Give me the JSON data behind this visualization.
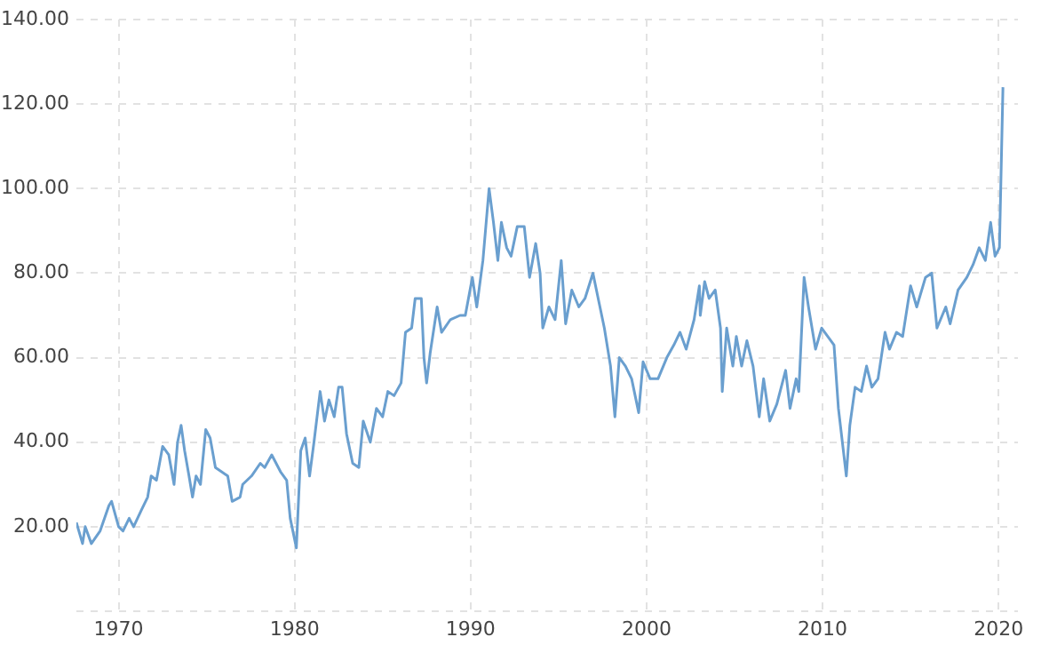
{
  "chart_data": {
    "type": "line",
    "grid": true,
    "marker": "none",
    "line_style": "solid",
    "legend": false,
    "xlim": [
      1967.6,
      2021.1
    ],
    "xticks": [
      1970,
      1980,
      1990,
      2000,
      2010,
      2020
    ],
    "ylim": [
      0,
      140
    ],
    "yticks": [
      {
        "value": 0,
        "label": null
      },
      {
        "value": 20,
        "label": "20.00"
      },
      {
        "value": 40,
        "label": "40.00"
      },
      {
        "value": 60,
        "label": "60.00"
      },
      {
        "value": 80,
        "label": "80.00"
      },
      {
        "value": 100,
        "label": "100.00"
      },
      {
        "value": 120,
        "label": "120.00"
      },
      {
        "value": 140,
        "label": "140.00"
      }
    ],
    "series": [
      {
        "color": "#6a9fcf",
        "x": [
          1967.6,
          1967.95,
          1968.1,
          1968.45,
          1968.95,
          1969.45,
          1969.6,
          1970.0,
          1970.25,
          1970.6,
          1970.85,
          1971.3,
          1971.65,
          1971.85,
          1972.15,
          1972.5,
          1972.85,
          1973.15,
          1973.35,
          1973.55,
          1973.75,
          1974.0,
          1974.2,
          1974.4,
          1974.65,
          1974.95,
          1975.2,
          1975.5,
          1975.85,
          1976.2,
          1976.45,
          1976.9,
          1977.05,
          1977.55,
          1978.05,
          1978.3,
          1978.7,
          1979.2,
          1979.55,
          1979.75,
          1980.1,
          1980.35,
          1980.6,
          1980.85,
          1981.1,
          1981.45,
          1981.7,
          1981.95,
          1982.25,
          1982.5,
          1982.7,
          1982.95,
          1983.3,
          1983.65,
          1983.9,
          1984.3,
          1984.65,
          1985.0,
          1985.3,
          1985.65,
          1986.05,
          1986.3,
          1986.65,
          1986.85,
          1987.2,
          1987.35,
          1987.5,
          1987.7,
          1988.1,
          1988.35,
          1988.85,
          1989.4,
          1989.7,
          1990.1,
          1990.35,
          1990.7,
          1991.05,
          1991.3,
          1991.55,
          1991.75,
          1992.05,
          1992.3,
          1992.65,
          1993.05,
          1993.35,
          1993.7,
          1993.95,
          1994.1,
          1994.45,
          1994.8,
          1995.15,
          1995.4,
          1995.75,
          1996.15,
          1996.5,
          1996.95,
          1997.3,
          1997.6,
          1997.95,
          1998.2,
          1998.45,
          1998.8,
          1999.15,
          1999.55,
          1999.8,
          2000.2,
          2000.65,
          2001.15,
          2001.55,
          2001.9,
          2002.25,
          2002.7,
          2003.0,
          2003.05,
          2003.3,
          2003.55,
          2003.9,
          2004.2,
          2004.3,
          2004.55,
          2004.9,
          2005.1,
          2005.4,
          2005.7,
          2006.05,
          2006.4,
          2006.65,
          2007.0,
          2007.4,
          2007.9,
          2008.15,
          2008.5,
          2008.65,
          2008.95,
          2009.2,
          2009.6,
          2009.95,
          2010.3,
          2010.65,
          2010.9,
          2011.35,
          2011.55,
          2011.85,
          2012.2,
          2012.5,
          2012.8,
          2013.15,
          2013.55,
          2013.8,
          2014.2,
          2014.55,
          2015.0,
          2015.35,
          2015.85,
          2016.2,
          2016.5,
          2017.0,
          2017.25,
          2017.7,
          2018.2,
          2018.55,
          2018.9,
          2019.25,
          2019.55,
          2019.8,
          2020.05,
          2020.25
        ],
        "values": [
          21,
          16,
          20,
          16,
          19,
          25,
          26,
          20,
          19,
          22,
          20,
          24,
          27,
          32,
          31,
          39,
          37,
          30,
          40,
          44,
          38,
          32,
          27,
          32,
          30,
          43,
          41,
          34,
          33,
          32,
          26,
          27,
          30,
          32,
          35,
          34,
          37,
          33,
          31,
          22,
          15,
          38,
          41,
          32,
          40,
          52,
          45,
          50,
          46,
          53,
          53,
          42,
          35,
          34,
          45,
          40,
          48,
          46,
          52,
          51,
          54,
          66,
          67,
          74,
          74,
          60,
          54,
          61,
          72,
          66,
          69,
          70,
          70,
          79,
          72,
          83,
          100,
          92,
          83,
          92,
          86,
          84,
          91,
          91,
          79,
          87,
          80,
          67,
          72,
          69,
          83,
          68,
          76,
          72,
          74,
          80,
          73,
          67,
          58,
          46,
          60,
          58,
          55,
          47,
          59,
          55,
          55,
          60,
          63,
          66,
          62,
          69,
          77,
          70,
          78,
          74,
          76,
          67,
          52,
          67,
          58,
          65,
          58,
          64,
          58,
          46,
          55,
          45,
          49,
          57,
          48,
          55,
          52,
          79,
          72,
          62,
          67,
          65,
          63,
          48,
          32,
          44,
          53,
          52,
          58,
          53,
          55,
          66,
          62,
          66,
          65,
          77,
          72,
          79,
          80,
          67,
          72,
          68,
          76,
          79,
          82,
          86,
          83,
          92,
          84,
          86,
          124
        ]
      }
    ]
  }
}
